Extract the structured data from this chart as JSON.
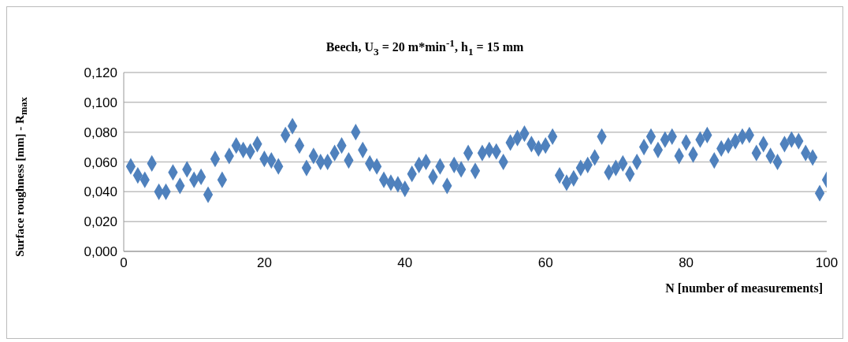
{
  "chart_data": {
    "type": "scatter",
    "title": "Beech, U$_{3}$ = 20 m*min$^{-1}$, h$_{1}$ = 15 mm",
    "xlabel": "N [number of measurements]",
    "ylabel": "Surface roughness [mm] - R$_{max}$",
    "x": [
      1,
      2,
      3,
      4,
      5,
      6,
      7,
      8,
      9,
      10,
      11,
      12,
      13,
      14,
      15,
      16,
      17,
      18,
      19,
      20,
      21,
      22,
      23,
      24,
      25,
      26,
      27,
      28,
      29,
      30,
      31,
      32,
      33,
      34,
      35,
      36,
      37,
      38,
      39,
      40,
      41,
      42,
      43,
      44,
      45,
      46,
      47,
      48,
      49,
      50,
      51,
      52,
      53,
      54,
      55,
      56,
      57,
      58,
      59,
      60,
      61,
      62,
      63,
      64,
      65,
      66,
      67,
      68,
      69,
      70,
      71,
      72,
      73,
      74,
      75,
      76,
      77,
      78,
      79,
      80,
      81,
      82,
      83,
      84,
      85,
      86,
      87,
      88,
      89,
      90,
      91,
      92,
      93,
      94,
      95,
      96,
      97,
      98,
      99,
      100
    ],
    "series": [
      {
        "color": "#4f81bd",
        "values": [
          0.057,
          0.051,
          0.048,
          0.059,
          0.04,
          0.04,
          0.053,
          0.044,
          0.055,
          0.048,
          0.05,
          0.038,
          0.062,
          0.048,
          0.064,
          0.071,
          0.068,
          0.067,
          0.072,
          0.062,
          0.061,
          0.057,
          0.078,
          0.084,
          0.071,
          0.056,
          0.064,
          0.06,
          0.06,
          0.066,
          0.071,
          0.061,
          0.08,
          0.068,
          0.059,
          0.057,
          0.048,
          0.046,
          0.045,
          0.042,
          0.052,
          0.058,
          0.06,
          0.05,
          0.057,
          0.044,
          0.058,
          0.055,
          0.066,
          0.054,
          0.066,
          0.068,
          0.067,
          0.06,
          0.073,
          0.076,
          0.079,
          0.072,
          0.069,
          0.071,
          0.077,
          0.051,
          0.046,
          0.049,
          0.056,
          0.058,
          0.063,
          0.077,
          0.053,
          0.056,
          0.059,
          0.052,
          0.06,
          0.07,
          0.077,
          0.068,
          0.075,
          0.077,
          0.064,
          0.073,
          0.065,
          0.075,
          0.078,
          0.061,
          0.069,
          0.071,
          0.074,
          0.077,
          0.078,
          0.066,
          0.072,
          0.064,
          0.06,
          0.072,
          0.075,
          0.074,
          0.066,
          0.063,
          0.039,
          0.048
        ]
      }
    ],
    "xlim": [
      0,
      100
    ],
    "xticks": [
      0,
      20,
      40,
      60,
      80,
      100
    ],
    "ylim": [
      0,
      0.12
    ],
    "yticks": [
      {
        "value": 0,
        "label": "0,000"
      },
      {
        "value": 0.02,
        "label": "0,020"
      },
      {
        "value": 0.04,
        "label": "0,040"
      },
      {
        "value": 0.06,
        "label": "0,060"
      },
      {
        "value": 0.08,
        "label": "0,080"
      },
      {
        "value": 0.1,
        "label": "0,100"
      },
      {
        "value": 0.12,
        "label": "0,120"
      }
    ],
    "grid": "y",
    "marker": "diamond",
    "legend": false
  }
}
